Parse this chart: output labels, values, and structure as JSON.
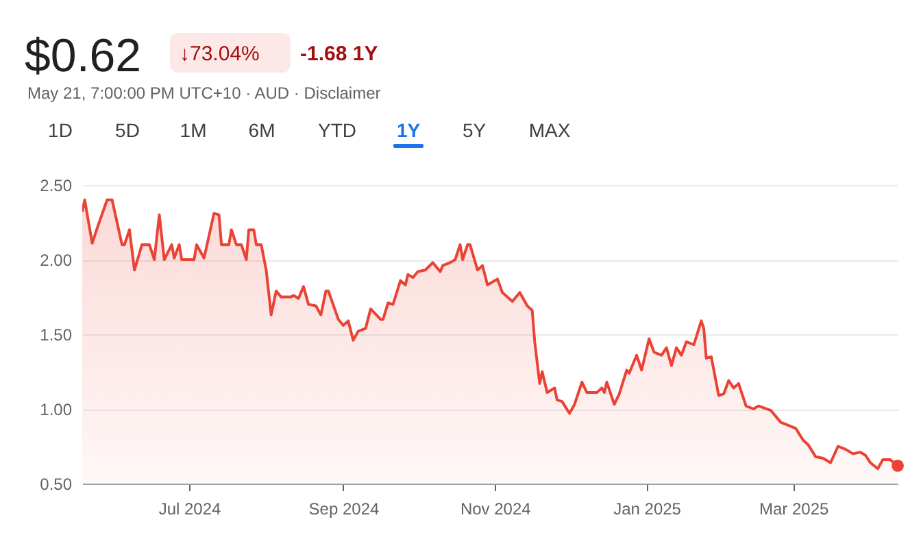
{
  "chart_data": {
    "type": "area",
    "title": "$0.62",
    "annotations": [
      "↓73.04%",
      "-1.68 1Y",
      "May 21, 7:00:00 PM UTC+10 · AUD · Disclaimer",
      "1D",
      "5D",
      "1M",
      "6M",
      "YTD",
      "1Y",
      "5Y",
      "MAX"
    ],
    "x": [
      "2024-05-19",
      "2024-05-20",
      "2024-05-23",
      "2024-05-25",
      "2024-05-29",
      "2024-05-31",
      "2024-06-04",
      "2024-06-05",
      "2024-06-07",
      "2024-06-09",
      "2024-06-12",
      "2024-06-15",
      "2024-06-17",
      "2024-06-19",
      "2024-06-21",
      "2024-06-24",
      "2024-06-25",
      "2024-06-27",
      "2024-06-28",
      "2024-07-03",
      "2024-07-04",
      "2024-07-07",
      "2024-07-11",
      "2024-07-13",
      "2024-07-14",
      "2024-07-17",
      "2024-07-18",
      "2024-07-20",
      "2024-07-22",
      "2024-07-24",
      "2024-07-25",
      "2024-07-27",
      "2024-07-28",
      "2024-07-30",
      "2024-08-01",
      "2024-08-03",
      "2024-08-05",
      "2024-08-07",
      "2024-08-11",
      "2024-08-12",
      "2024-08-14",
      "2024-08-16",
      "2024-08-18",
      "2024-08-21",
      "2024-08-23",
      "2024-08-25",
      "2024-08-26",
      "2024-08-30",
      "2024-09-01",
      "2024-09-03",
      "2024-09-05",
      "2024-09-07",
      "2024-09-10",
      "2024-09-12",
      "2024-09-16",
      "2024-09-17",
      "2024-09-19",
      "2024-09-21",
      "2024-09-24",
      "2024-09-26",
      "2024-09-27",
      "2024-09-29",
      "2024-10-01",
      "2024-10-04",
      "2024-10-07",
      "2024-10-10",
      "2024-10-11",
      "2024-10-14",
      "2024-10-16",
      "2024-10-18",
      "2024-10-19",
      "2024-10-21",
      "2024-10-22",
      "2024-10-25",
      "2024-10-27",
      "2024-10-29",
      "2024-11-02",
      "2024-11-04",
      "2024-11-08",
      "2024-11-11",
      "2024-11-14",
      "2024-11-16",
      "2024-11-17",
      "2024-11-19",
      "2024-11-20",
      "2024-11-22",
      "2024-11-25",
      "2024-11-26",
      "2024-11-28",
      "2024-12-01",
      "2024-12-03",
      "2024-12-06",
      "2024-12-08",
      "2024-12-12",
      "2024-12-14",
      "2024-12-15",
      "2024-12-16",
      "2024-12-19",
      "2024-12-21",
      "2024-12-24",
      "2024-12-25",
      "2024-12-28",
      "2024-12-30",
      "2025-01-02",
      "2025-01-04",
      "2025-01-07",
      "2025-01-09",
      "2025-01-11",
      "2025-01-13",
      "2025-01-15",
      "2025-01-17",
      "2025-01-20",
      "2025-01-23",
      "2025-01-24",
      "2025-01-25",
      "2025-01-27",
      "2025-01-30",
      "2025-02-01",
      "2025-02-03",
      "2025-02-05",
      "2025-02-07",
      "2025-02-10",
      "2025-02-13",
      "2025-02-15",
      "2025-02-20",
      "2025-02-24",
      "2025-02-27",
      "2025-03-02",
      "2025-03-05",
      "2025-03-07",
      "2025-03-10",
      "2025-03-13",
      "2025-03-16",
      "2025-03-19",
      "2025-03-22",
      "2025-03-25",
      "2025-03-28",
      "2025-03-30",
      "2025-04-01",
      "2025-04-04",
      "2025-04-06",
      "2025-04-09",
      "2025-04-12"
    ],
    "series": [
      {
        "color": "#ea4335",
        "values": [
          2.32,
          2.4,
          2.11,
          2.21,
          2.4,
          2.4,
          2.1,
          2.1,
          2.2,
          1.93,
          2.1,
          2.1,
          2.0,
          2.3,
          2.0,
          2.1,
          2.01,
          2.1,
          2.0,
          2.0,
          2.1,
          2.01,
          2.31,
          2.3,
          2.1,
          2.1,
          2.2,
          2.1,
          2.1,
          2.0,
          2.2,
          2.2,
          2.1,
          2.1,
          1.93,
          1.63,
          1.79,
          1.75,
          1.75,
          1.76,
          1.74,
          1.82,
          1.7,
          1.69,
          1.63,
          1.79,
          1.79,
          1.6,
          1.56,
          1.59,
          1.46,
          1.52,
          1.54,
          1.67,
          1.6,
          1.6,
          1.71,
          1.7,
          1.86,
          1.83,
          1.9,
          1.88,
          1.92,
          1.93,
          1.98,
          1.92,
          1.96,
          1.98,
          2.0,
          2.1,
          2.0,
          2.1,
          2.1,
          1.93,
          1.96,
          1.83,
          1.87,
          1.78,
          1.72,
          1.78,
          1.69,
          1.66,
          1.45,
          1.17,
          1.25,
          1.11,
          1.14,
          1.06,
          1.05,
          0.97,
          1.03,
          1.18,
          1.11,
          1.11,
          1.14,
          1.11,
          1.18,
          1.03,
          1.1,
          1.26,
          1.24,
          1.36,
          1.26,
          1.47,
          1.38,
          1.36,
          1.41,
          1.29,
          1.41,
          1.36,
          1.45,
          1.43,
          1.59,
          1.54,
          1.34,
          1.35,
          1.09,
          1.1,
          1.19,
          1.14,
          1.17,
          1.02,
          1.0,
          1.02,
          0.99,
          0.91,
          0.89,
          0.87,
          0.79,
          0.76,
          0.68,
          0.67,
          0.64,
          0.75,
          0.73,
          0.7,
          0.71,
          0.69,
          0.64,
          0.6,
          0.66,
          0.66,
          0.62
        ]
      },
      {
        "type": "scatter",
        "color": "#ea4335",
        "x": [
          "2025-04-12"
        ],
        "values": [
          0.62
        ]
      }
    ],
    "xlim": [
      "2024-05-19",
      "2025-04-12"
    ],
    "xticks": [
      {
        "value": "2024-07-01",
        "label": "Jul 2024"
      },
      {
        "value": "2024-09-01",
        "label": "Sep 2024"
      },
      {
        "value": "2024-11-01",
        "label": "Nov 2024"
      },
      {
        "value": "2025-01-01",
        "label": "Jan 2025"
      },
      {
        "value": "2025-03-01",
        "label": "Mar 2025"
      }
    ],
    "ylim": [
      0.5,
      2.5
    ],
    "yticks": [
      {
        "value": 0.5,
        "label": "0.50"
      },
      {
        "value": 1,
        "label": "1.00"
      },
      {
        "value": 1.5,
        "label": "1.50"
      },
      {
        "value": 2,
        "label": "2.00"
      },
      {
        "value": 2.5,
        "label": "2.50"
      }
    ],
    "grid": "y"
  }
}
